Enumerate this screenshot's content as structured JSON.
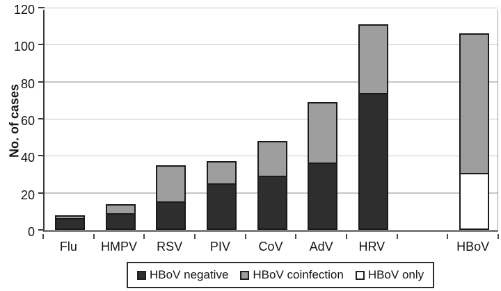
{
  "chart_data": {
    "type": "bar",
    "stacked": true,
    "title": "",
    "ylabel": "No. of cases",
    "xlabel": "",
    "ylim": [
      0,
      120
    ],
    "yticks": [
      0,
      20,
      40,
      60,
      80,
      100,
      120
    ],
    "grid": "horizontal",
    "legend_position": "bottom",
    "categories": [
      "Flu",
      "HMPV",
      "RSV",
      "PIV",
      "CoV",
      "AdV",
      "HRV",
      "",
      "HBoV"
    ],
    "series": [
      {
        "name": "HBoV negative",
        "color": "#2e2e2e",
        "values": [
          7,
          9,
          15,
          25,
          29,
          36,
          74,
          0,
          0
        ]
      },
      {
        "name": "HBoV coinfection",
        "color": "#9e9e9e",
        "values": [
          1,
          5,
          20,
          12,
          19,
          33,
          37,
          0,
          76
        ]
      },
      {
        "name": "HBoV only",
        "color": "#ffffff",
        "values": [
          0,
          0,
          0,
          0,
          0,
          0,
          0,
          0,
          30
        ]
      }
    ],
    "stack_bottom_to_top": [
      "HBoV negative",
      "HBoV only",
      "HBoV coinfection"
    ],
    "bar_totals": [
      8,
      14,
      35,
      37,
      48,
      69,
      111,
      0,
      106
    ]
  },
  "legend": {
    "items": [
      {
        "label": "HBoV negative",
        "swatch": "#2e2e2e"
      },
      {
        "label": "HBoV coinfection",
        "swatch": "#9e9e9e"
      },
      {
        "label": "HBoV only",
        "swatch": "#ffffff"
      }
    ]
  },
  "colors": {
    "bar_border": "#1a1a1a",
    "gridline": "#c6c6c6",
    "y_axis": "#3a3a3a",
    "x_axis": "#7d7d7d",
    "text": "#141414"
  }
}
